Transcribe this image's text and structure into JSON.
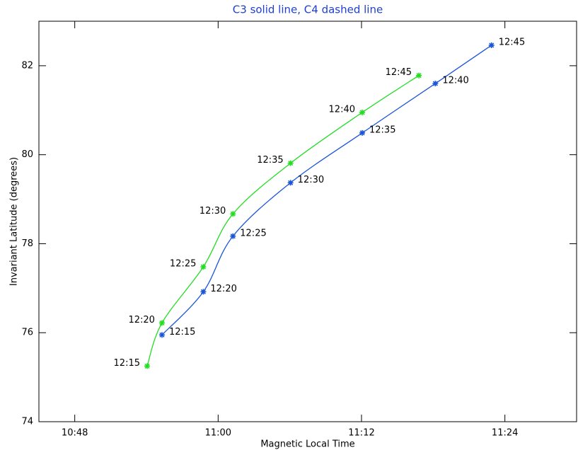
{
  "chart_data": {
    "type": "line",
    "title": "C3 solid line, C4 dashed line",
    "xlabel": "Magnetic Local Time",
    "ylabel": "Invariant Latitude (degrees)",
    "xlim": [
      645,
      690
    ],
    "ylim": [
      74,
      83
    ],
    "xticks": [
      {
        "value": 648,
        "label": "10:48"
      },
      {
        "value": 660,
        "label": "11:00"
      },
      {
        "value": 672,
        "label": "11:12"
      },
      {
        "value": 684,
        "label": "11:24"
      }
    ],
    "yticks": [
      74,
      76,
      78,
      80,
      82
    ],
    "series": [
      {
        "color": "#22dd22",
        "x": [
          654.06,
          655.3,
          658.76,
          661.24,
          666.06,
          672.06,
          676.8
        ],
        "values": [
          75.25,
          76.22,
          77.48,
          78.67,
          79.81,
          80.95,
          81.78
        ],
        "labels": [
          "12:15",
          "12:20",
          "12:25",
          "12:30",
          "12:35",
          "12:40",
          "12:45"
        ]
      },
      {
        "color": "#1a55d8",
        "x": [
          655.3,
          658.76,
          661.24,
          666.06,
          672.06,
          678.18,
          682.88
        ],
        "values": [
          75.95,
          76.92,
          78.17,
          79.37,
          80.49,
          81.6,
          82.46
        ],
        "labels": [
          "12:15",
          "12:20",
          "12:25",
          "12:30",
          "12:35",
          "12:40",
          "12:45"
        ]
      }
    ]
  }
}
